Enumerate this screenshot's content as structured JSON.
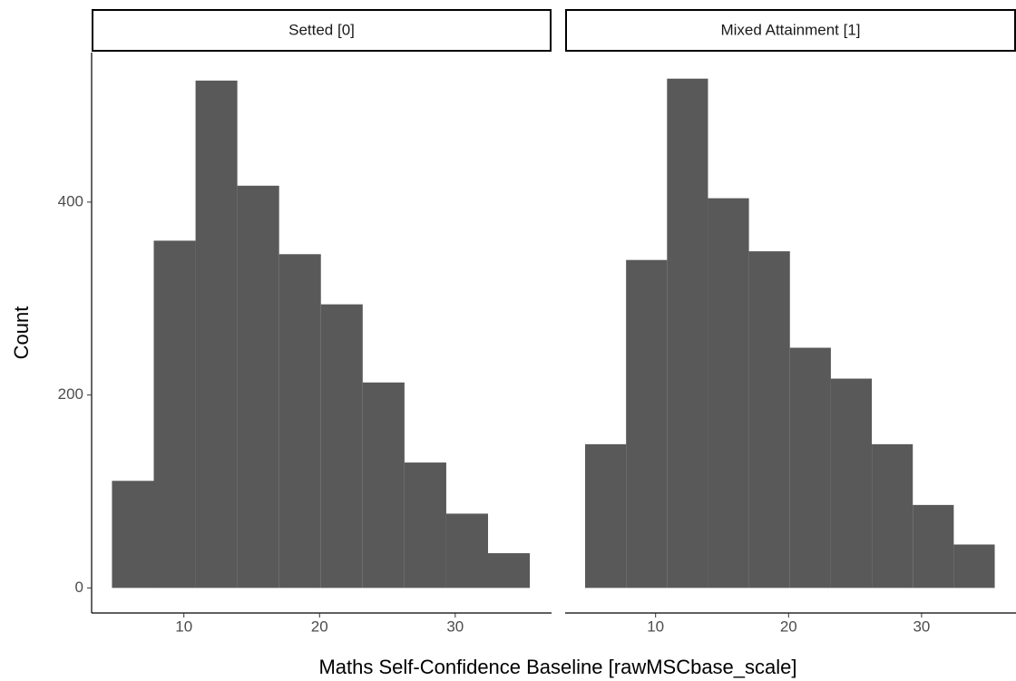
{
  "chart_data": [
    {
      "type": "histogram",
      "title": "Setted [0]",
      "xlabel": "Maths Self-Confidence Baseline [rawMSCbase_scale]",
      "ylabel": "Count",
      "bins": [
        4.7,
        7.78,
        10.86,
        13.94,
        17.02,
        20.1,
        23.18,
        26.26,
        29.34,
        32.42,
        35.5
      ],
      "values": [
        111,
        360,
        526,
        417,
        346,
        294,
        213,
        130,
        77,
        36
      ],
      "color": "#595959",
      "xlim": [
        3.2,
        37.1
      ],
      "ylim": [
        -26,
        555
      ],
      "xticks": [
        10,
        20,
        30
      ],
      "yticks": [
        0,
        200,
        400
      ]
    },
    {
      "type": "histogram",
      "title": "Mixed Attainment [1]",
      "bins": [
        4.7,
        7.78,
        10.86,
        13.94,
        17.02,
        20.1,
        23.18,
        26.26,
        29.34,
        32.42,
        35.5
      ],
      "values": [
        149,
        340,
        528,
        404,
        349,
        249,
        217,
        149,
        86,
        45
      ],
      "color": "#595959",
      "xlim": [
        3.2,
        37.1
      ],
      "ylim": [
        -26,
        555
      ],
      "xticks": [
        10,
        20,
        30
      ]
    }
  ]
}
